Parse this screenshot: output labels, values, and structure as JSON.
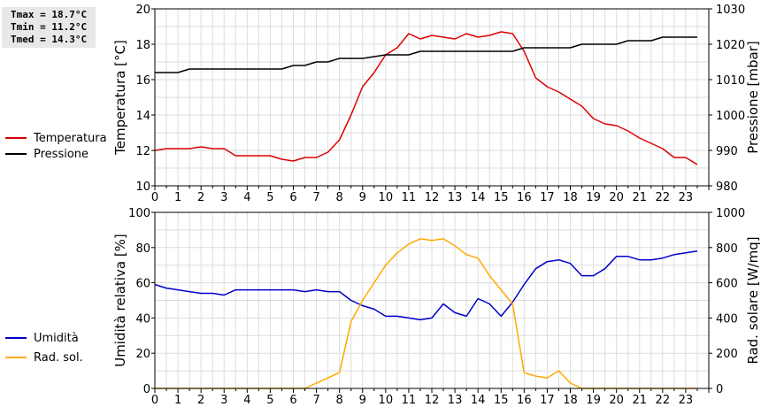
{
  "stats": {
    "tmax": "Tmax = 18.7°C",
    "tmin": "Tmin = 11.2°C",
    "tmed": "Tmed = 14.3°C"
  },
  "chart_data": [
    {
      "type": "line",
      "x_ticks": [
        "0",
        "1",
        "2",
        "3",
        "4",
        "5",
        "6",
        "7",
        "8",
        "9",
        "10",
        "11",
        "12",
        "13",
        "14",
        "15",
        "16",
        "17",
        "18",
        "19",
        "20",
        "21",
        "22",
        "23"
      ],
      "xlim": [
        0,
        24
      ],
      "grid": true,
      "legend_placement": "left",
      "left_axis": {
        "label": "Temperatura [°C]",
        "range": [
          10,
          20
        ],
        "ticks": [
          "10",
          "12",
          "14",
          "16",
          "18",
          "20"
        ]
      },
      "right_axis": {
        "label": "Pressione [mbar]",
        "range": [
          980,
          1030
        ],
        "ticks": [
          "980",
          "990",
          "1000",
          "1010",
          "1020",
          "1030"
        ]
      },
      "series": [
        {
          "name": "Temperatura",
          "axis": "left",
          "color": "#dd0000",
          "x": [
            0,
            0.5,
            1,
            1.5,
            2,
            2.5,
            3,
            3.5,
            4,
            4.5,
            5,
            5.5,
            6,
            6.5,
            7,
            7.5,
            8,
            8.5,
            9,
            9.5,
            10,
            10.5,
            11,
            11.5,
            12,
            12.5,
            13,
            13.5,
            14,
            14.5,
            15,
            15.5,
            16,
            16.5,
            17,
            17.5,
            18,
            18.5,
            19,
            19.5,
            20,
            20.5,
            21,
            21.5,
            22,
            22.5,
            23,
            23.5
          ],
          "y": [
            12.0,
            12.1,
            12.1,
            12.1,
            12.2,
            12.1,
            12.1,
            11.7,
            11.7,
            11.7,
            11.7,
            11.5,
            11.4,
            11.6,
            11.6,
            11.9,
            12.6,
            14.0,
            15.6,
            16.4,
            17.4,
            17.8,
            18.6,
            18.3,
            18.5,
            18.4,
            18.3,
            18.6,
            18.4,
            18.5,
            18.7,
            18.6,
            17.6,
            16.1,
            15.6,
            15.3,
            14.9,
            14.5,
            13.8,
            13.5,
            13.4,
            13.1,
            12.7,
            12.4,
            12.1,
            11.6,
            11.6,
            11.2
          ]
        },
        {
          "name": "Pressione",
          "axis": "right",
          "color": "#000000",
          "x": [
            0,
            1,
            1.5,
            3,
            4,
            5,
            5.5,
            6,
            6.5,
            7,
            7.5,
            8,
            9,
            10,
            11,
            11.5,
            12,
            13,
            14,
            15,
            15.5,
            16,
            17,
            18,
            18.5,
            19,
            20,
            20.5,
            21,
            21.5,
            22,
            23,
            23.5
          ],
          "y": [
            1012,
            1012,
            1013,
            1013,
            1013,
            1013,
            1013,
            1014,
            1014,
            1015,
            1015,
            1016,
            1016,
            1017,
            1017,
            1018,
            1018,
            1018,
            1018,
            1018,
            1018,
            1019,
            1019,
            1019,
            1020,
            1020,
            1020,
            1021,
            1021,
            1021,
            1022,
            1022,
            1022
          ]
        }
      ]
    },
    {
      "type": "line",
      "x_ticks": [
        "0",
        "1",
        "2",
        "3",
        "4",
        "5",
        "6",
        "7",
        "8",
        "9",
        "10",
        "11",
        "12",
        "13",
        "14",
        "15",
        "16",
        "17",
        "18",
        "19",
        "20",
        "21",
        "22",
        "23"
      ],
      "xlim": [
        0,
        24
      ],
      "grid": true,
      "legend_placement": "left",
      "left_axis": {
        "label": "Umidità relativa [%]",
        "range": [
          0,
          100
        ],
        "ticks": [
          "0",
          "20",
          "40",
          "60",
          "80",
          "100"
        ]
      },
      "right_axis": {
        "label": "Rad. solare [W/mq]",
        "range": [
          0,
          1000
        ],
        "ticks": [
          "0",
          "200",
          "400",
          "600",
          "800",
          "1000"
        ]
      },
      "series": [
        {
          "name": "Umidità",
          "axis": "left",
          "color": "#0000cc",
          "x": [
            0,
            0.5,
            1,
            1.5,
            2,
            2.5,
            3,
            3.5,
            4,
            4.5,
            5,
            5.5,
            6,
            6.5,
            7,
            7.5,
            8,
            8.5,
            9,
            9.5,
            10,
            10.5,
            11,
            11.5,
            12,
            12.5,
            13,
            13.5,
            14,
            14.5,
            15,
            15.5,
            16,
            16.5,
            17,
            17.5,
            18,
            18.5,
            19,
            19.5,
            20,
            20.5,
            21,
            21.5,
            22,
            22.5,
            23,
            23.5
          ],
          "y": [
            59,
            57,
            56,
            55,
            54,
            54,
            53,
            56,
            56,
            56,
            56,
            56,
            56,
            55,
            56,
            55,
            55,
            50,
            47,
            45,
            41,
            41,
            40,
            39,
            40,
            48,
            43,
            41,
            51,
            48,
            41,
            49,
            59,
            68,
            72,
            73,
            71,
            64,
            64,
            68,
            75,
            75,
            73,
            73,
            74,
            76,
            77,
            78
          ]
        },
        {
          "name": "Rad. sol.",
          "axis": "right",
          "color": "#ffaa00",
          "x": [
            0,
            1,
            2,
            3,
            4,
            5,
            6,
            6.5,
            7,
            7.5,
            8,
            8.5,
            9,
            9.5,
            10,
            10.5,
            11,
            11.5,
            12,
            12.5,
            13,
            13.5,
            14,
            14.5,
            15,
            15.5,
            16,
            16.5,
            17,
            17.5,
            18,
            18.5,
            19,
            20,
            21,
            22,
            23,
            23.5
          ],
          "y": [
            0,
            0,
            0,
            0,
            0,
            0,
            0,
            0,
            30,
            60,
            90,
            380,
            500,
            600,
            700,
            770,
            820,
            850,
            840,
            850,
            810,
            760,
            740,
            640,
            560,
            480,
            90,
            70,
            60,
            100,
            30,
            0,
            0,
            0,
            0,
            0,
            0,
            0
          ]
        }
      ]
    }
  ]
}
